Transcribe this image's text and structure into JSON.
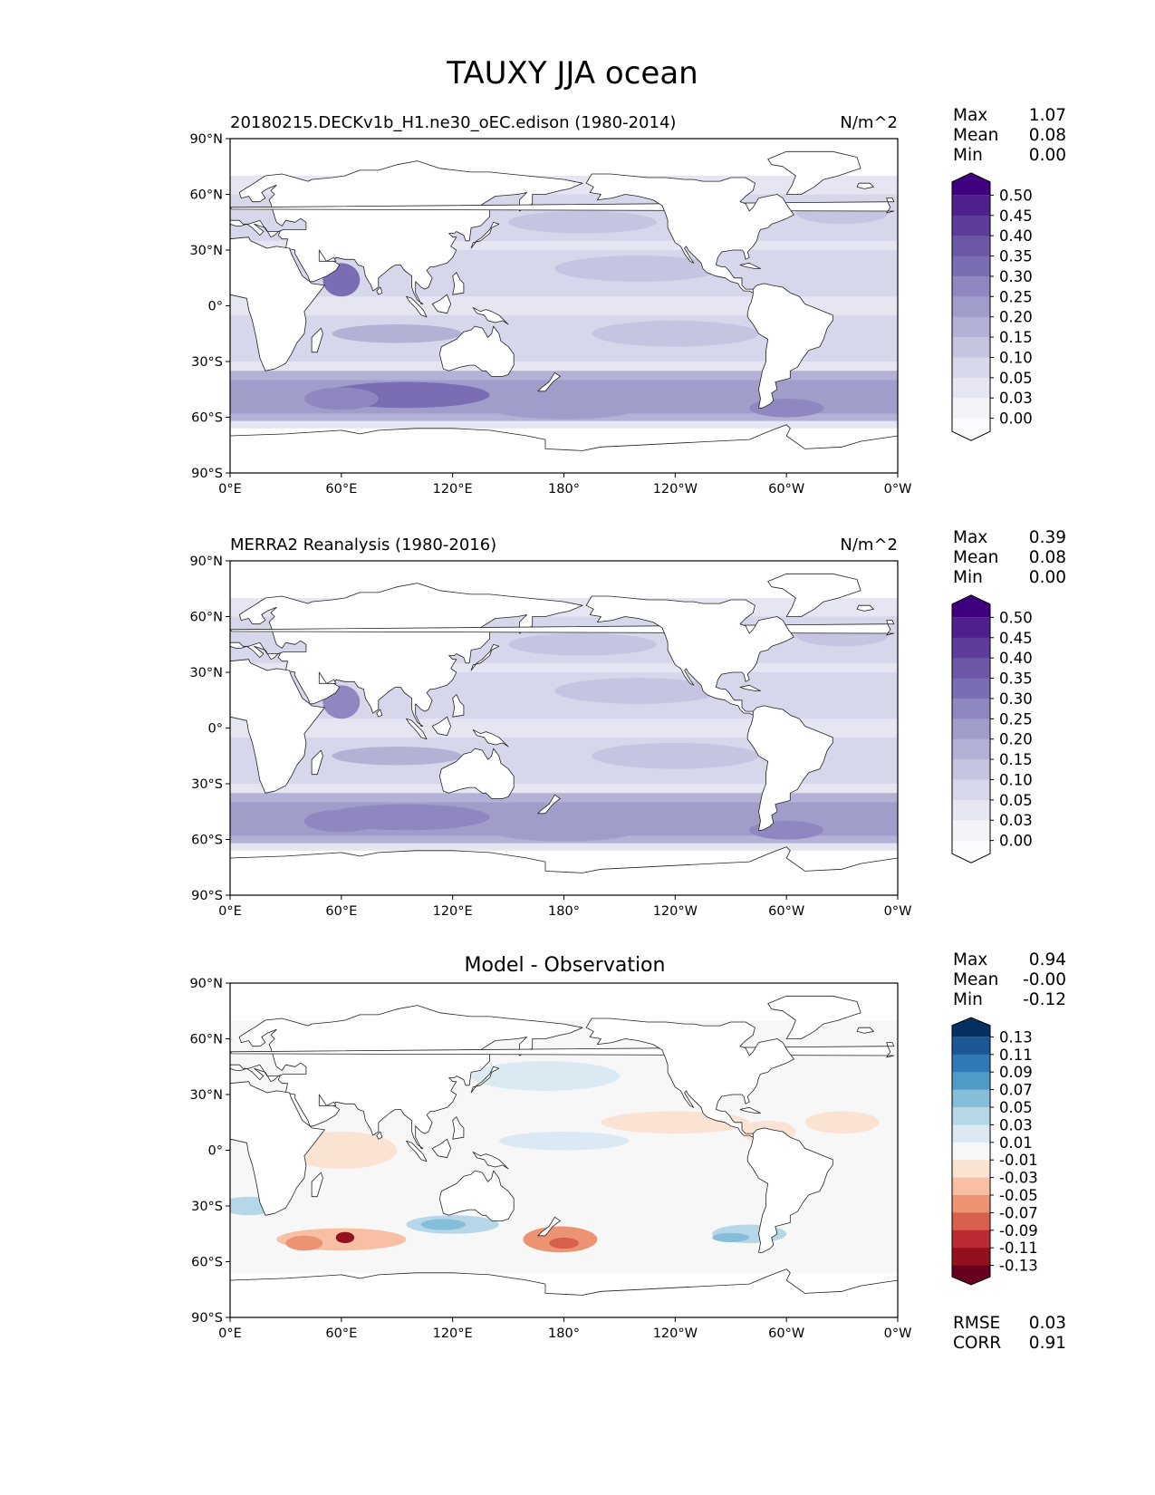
{
  "figure": {
    "title": "TAUXY JJA ocean",
    "units": "N/m^2"
  },
  "axes": {
    "lat_ticks": [
      "90°N",
      "60°N",
      "30°N",
      "0°",
      "30°S",
      "60°S",
      "90°S"
    ],
    "lon_ticks": [
      "0°E",
      "60°E",
      "120°E",
      "180°",
      "120°W",
      "60°W",
      "0°W"
    ]
  },
  "panels": [
    {
      "key": "model",
      "title_left": "20180215.DECKv1b_H1.ne30_oEC.edison (1980-2014)",
      "title_right": "N/m^2",
      "title_center": "",
      "stats": [
        {
          "label": "Max",
          "value": "1.07"
        },
        {
          "label": "Mean",
          "value": "0.08"
        },
        {
          "label": "Min",
          "value": "0.00"
        }
      ],
      "colorbar": {
        "levels": [
          "0.50",
          "0.45",
          "0.40",
          "0.35",
          "0.30",
          "0.25",
          "0.20",
          "0.15",
          "0.10",
          "0.05",
          "0.03",
          "0.00"
        ],
        "colors": [
          "#3f007d",
          "#4f1f8c",
          "#5e3c99",
          "#6c56a6",
          "#7b6db3",
          "#8e87c0",
          "#a19dcb",
          "#b3b1d6",
          "#c5c5e1",
          "#d7d7eb",
          "#e6e5f2",
          "#f3f2f8",
          "#fcfbfd"
        ]
      },
      "extra_stats": []
    },
    {
      "key": "obs",
      "title_left": "MERRA2 Reanalysis (1980-2016)",
      "title_right": "N/m^2",
      "title_center": "",
      "stats": [
        {
          "label": "Max",
          "value": "0.39"
        },
        {
          "label": "Mean",
          "value": "0.08"
        },
        {
          "label": "Min",
          "value": "0.00"
        }
      ],
      "colorbar": {
        "levels": [
          "0.50",
          "0.45",
          "0.40",
          "0.35",
          "0.30",
          "0.25",
          "0.20",
          "0.15",
          "0.10",
          "0.05",
          "0.03",
          "0.00"
        ],
        "colors": [
          "#3f007d",
          "#4f1f8c",
          "#5e3c99",
          "#6c56a6",
          "#7b6db3",
          "#8e87c0",
          "#a19dcb",
          "#b3b1d6",
          "#c5c5e1",
          "#d7d7eb",
          "#e6e5f2",
          "#f3f2f8",
          "#fcfbfd"
        ]
      },
      "extra_stats": []
    },
    {
      "key": "diff",
      "title_left": "",
      "title_right": "",
      "title_center": "Model - Observation",
      "stats": [
        {
          "label": "Max",
          "value": "0.94"
        },
        {
          "label": "Mean",
          "value": "-0.00"
        },
        {
          "label": "Min",
          "value": "-0.12"
        }
      ],
      "colorbar": {
        "levels": [
          "0.13",
          "0.11",
          "0.09",
          "0.07",
          "0.05",
          "0.03",
          "0.01",
          "-0.01",
          "-0.03",
          "-0.05",
          "-0.07",
          "-0.09",
          "-0.11",
          "-0.13"
        ],
        "colors": [
          "#053061",
          "#1c5796",
          "#2f79b5",
          "#4f9bc7",
          "#86bdda",
          "#b6d7e8",
          "#dbeaf2",
          "#f7f7f7",
          "#fbe3d4",
          "#f8bfa4",
          "#ec9374",
          "#d6604d",
          "#bb2a33",
          "#93101f",
          "#67001f"
        ]
      },
      "extra_stats": [
        {
          "label": "RMSE",
          "value": "0.03"
        },
        {
          "label": "CORR",
          "value": "0.91"
        }
      ]
    }
  ]
}
